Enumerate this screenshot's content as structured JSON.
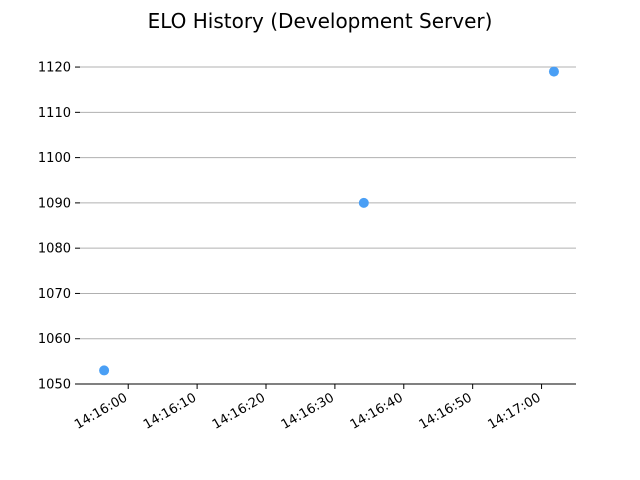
{
  "chart_data": {
    "type": "scatter",
    "title": "ELO History (Development Server)",
    "xlabel": "",
    "ylabel": "",
    "x_type": "time",
    "x": [
      "14:15:56.5",
      "14:16:34.2",
      "14:17:01.8"
    ],
    "y": [
      1053,
      1090,
      1119
    ],
    "xlim": [
      "14:15:53",
      "14:17:05"
    ],
    "ylim": [
      1050,
      1122
    ],
    "xticks": [
      "14:16:00",
      "14:16:10",
      "14:16:20",
      "14:16:30",
      "14:16:40",
      "14:16:50",
      "14:17:00"
    ],
    "yticks": [
      1050,
      1060,
      1070,
      1080,
      1090,
      1100,
      1110,
      1120
    ],
    "grid": "y",
    "point_color": "#4a9ff5",
    "axis_color": "#000000",
    "grid_color": "#b0b0b0"
  }
}
